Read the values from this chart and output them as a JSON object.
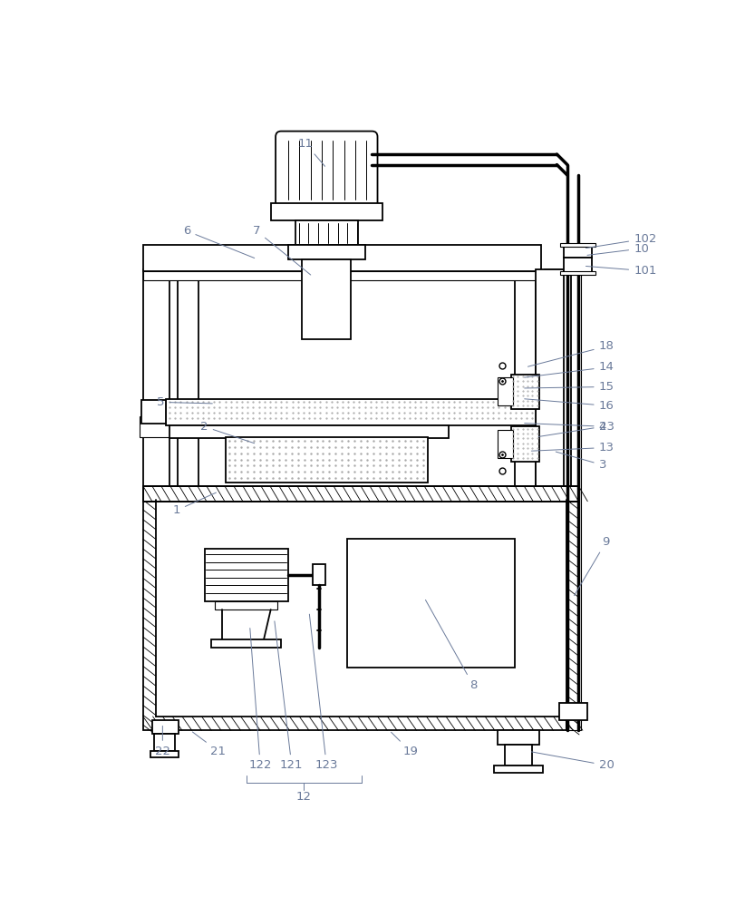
{
  "fig_width": 8.33,
  "fig_height": 10.0,
  "dpi": 100,
  "bg_color": "#ffffff",
  "line_color": "#000000",
  "label_color": "#7a8a6a",
  "ann_color": "#6a7a9a"
}
